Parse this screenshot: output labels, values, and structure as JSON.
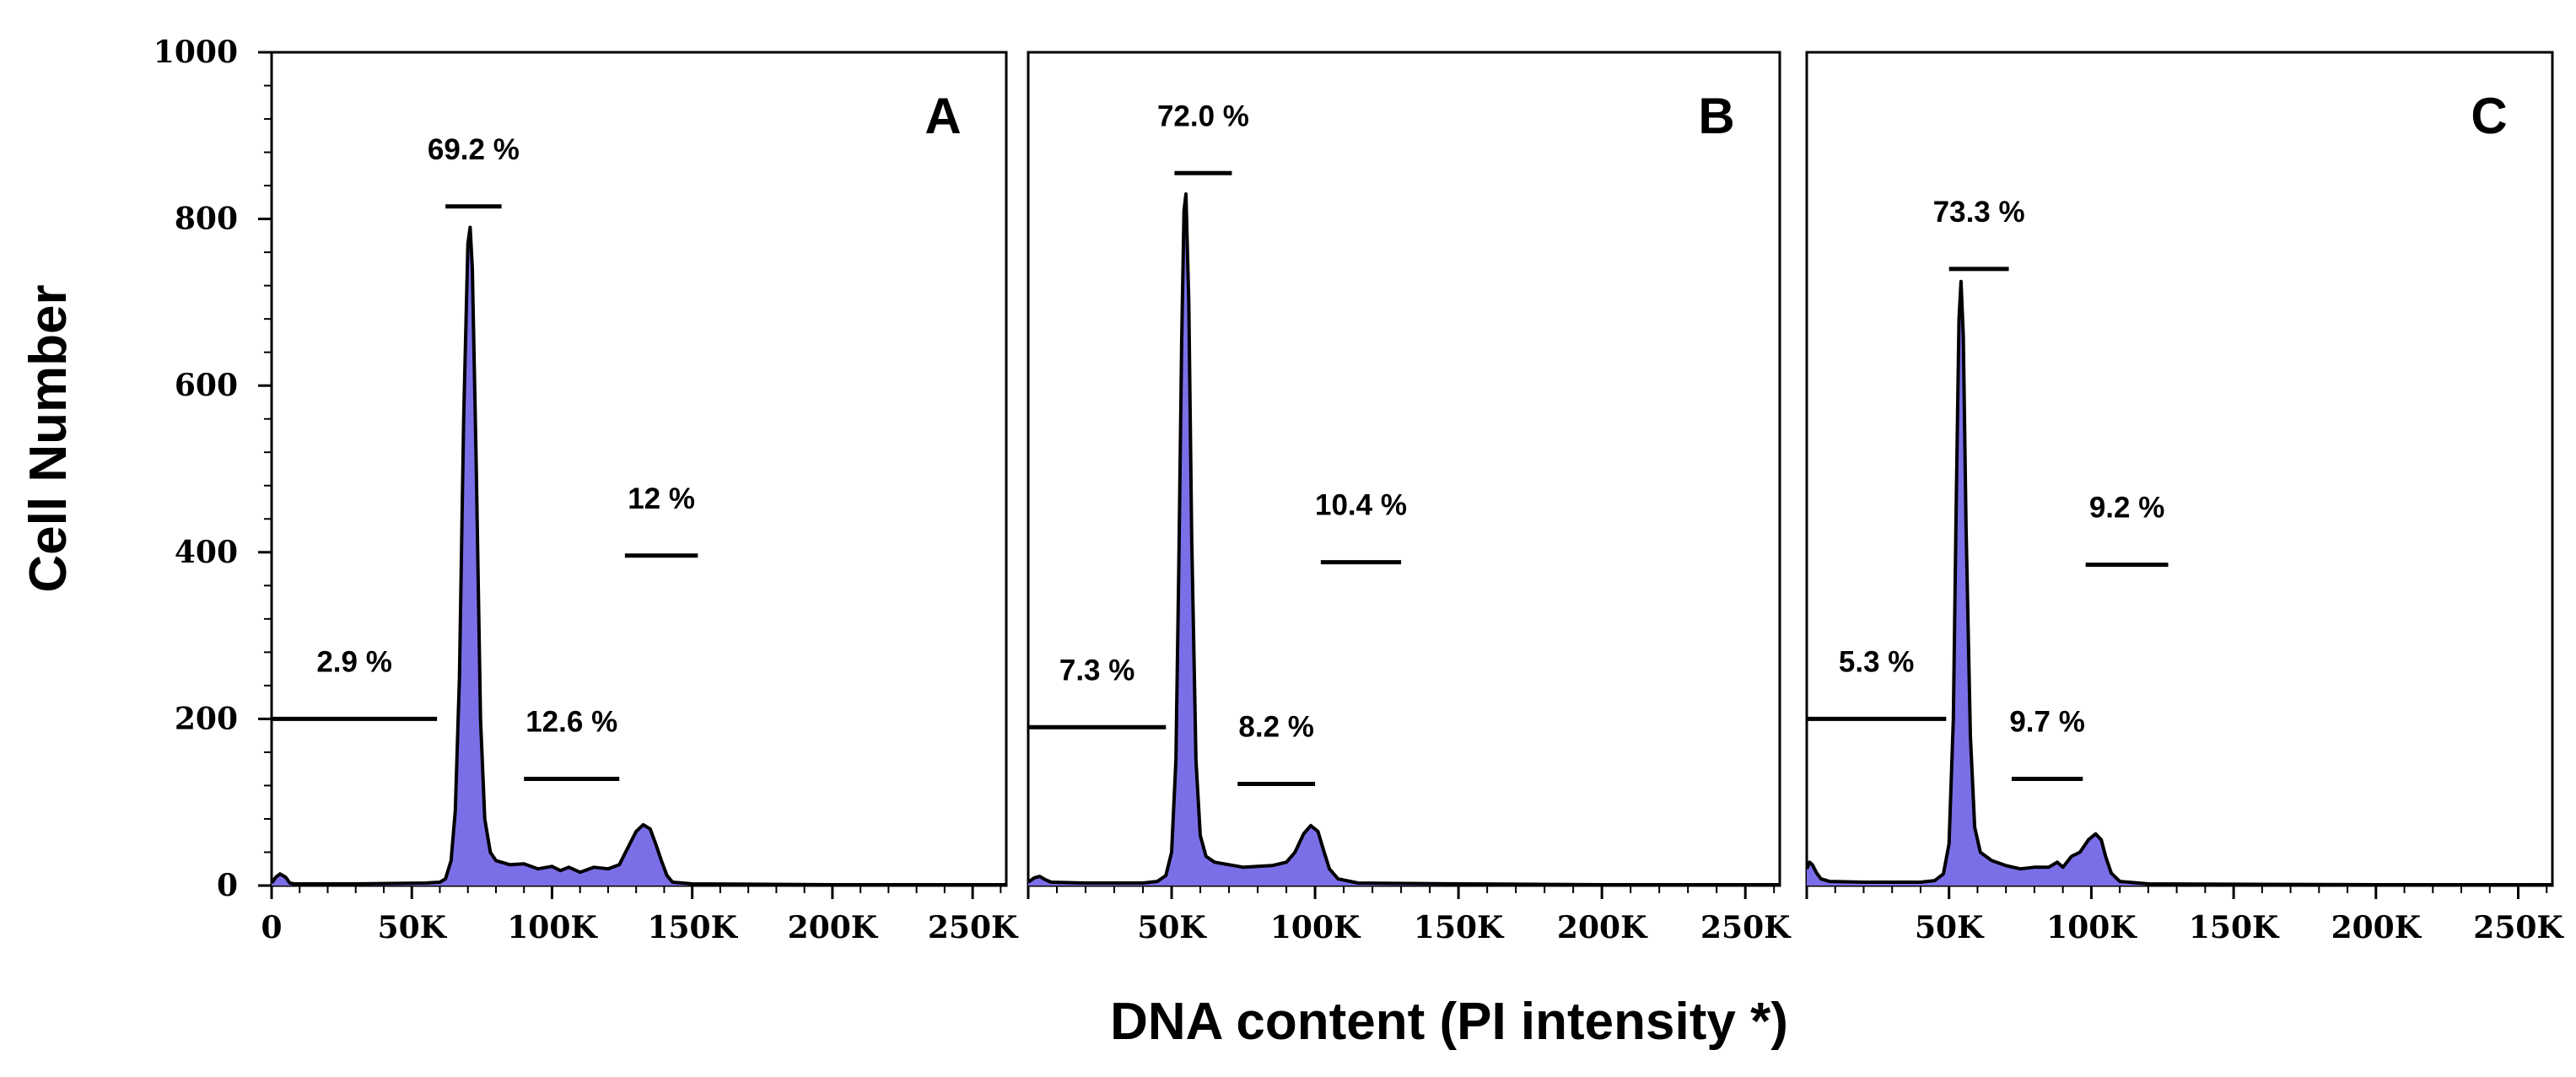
{
  "chart_data": {
    "type": "area",
    "title": "",
    "xlabel": "DNA content (PI intensity *)",
    "ylabel": "Cell Number",
    "ylim": [
      0,
      1000
    ],
    "xlim": [
      0,
      262000
    ],
    "y_ticks": [
      {
        "value": 0,
        "label": "0"
      },
      {
        "value": 200,
        "label": "200"
      },
      {
        "value": 400,
        "label": "400"
      },
      {
        "value": 600,
        "label": "600"
      },
      {
        "value": 800,
        "label": "800"
      },
      {
        "value": 1000,
        "label": "1000"
      }
    ],
    "fill_color": "#7b6fe8",
    "line_color": "#000000",
    "panels": [
      {
        "label": "A",
        "x_ticks": [
          {
            "value": 0,
            "label": "0"
          },
          {
            "value": 50000,
            "label": "50K"
          },
          {
            "value": 100000,
            "label": "100K"
          },
          {
            "value": 150000,
            "label": "150K"
          },
          {
            "value": 200000,
            "label": "200K"
          },
          {
            "value": 250000,
            "label": "250K"
          }
        ],
        "histogram": [
          [
            0,
            3
          ],
          [
            1500,
            10
          ],
          [
            3000,
            14
          ],
          [
            5000,
            10
          ],
          [
            6500,
            3
          ],
          [
            8000,
            2
          ],
          [
            30000,
            2
          ],
          [
            55000,
            3
          ],
          [
            60000,
            4
          ],
          [
            62000,
            8
          ],
          [
            64000,
            30
          ],
          [
            65500,
            90
          ],
          [
            67000,
            250
          ],
          [
            68500,
            560
          ],
          [
            70000,
            770
          ],
          [
            70800,
            790
          ],
          [
            71600,
            740
          ],
          [
            73000,
            500
          ],
          [
            74500,
            200
          ],
          [
            76000,
            80
          ],
          [
            78000,
            40
          ],
          [
            80000,
            30
          ],
          [
            85000,
            25
          ],
          [
            90000,
            26
          ],
          [
            95000,
            20
          ],
          [
            100000,
            23
          ],
          [
            103000,
            18
          ],
          [
            106000,
            22
          ],
          [
            110000,
            16
          ],
          [
            115000,
            22
          ],
          [
            120000,
            20
          ],
          [
            124000,
            25
          ],
          [
            127000,
            45
          ],
          [
            130000,
            65
          ],
          [
            132500,
            73
          ],
          [
            135000,
            68
          ],
          [
            137000,
            50
          ],
          [
            139000,
            30
          ],
          [
            141000,
            12
          ],
          [
            143000,
            4
          ],
          [
            150000,
            2
          ],
          [
            200000,
            1
          ],
          [
            262000,
            1
          ]
        ],
        "gates": [
          {
            "label": "2.9 %",
            "x_start": 0,
            "x_end": 59000,
            "y": 200
          },
          {
            "label": "69.2 %",
            "x_start": 62000,
            "x_end": 82000,
            "y": 815
          },
          {
            "label": "12.6 %",
            "x_start": 90000,
            "x_end": 124000,
            "y": 128
          },
          {
            "label": "12 %",
            "x_start": 126000,
            "x_end": 152000,
            "y": 396
          }
        ]
      },
      {
        "label": "B",
        "x_ticks": [
          {
            "value": 50000,
            "label": "50K"
          },
          {
            "value": 100000,
            "label": "100K"
          },
          {
            "value": 150000,
            "label": "150K"
          },
          {
            "value": 200000,
            "label": "200K"
          },
          {
            "value": 250000,
            "label": "250K"
          }
        ],
        "histogram": [
          [
            0,
            4
          ],
          [
            2000,
            9
          ],
          [
            4000,
            11
          ],
          [
            6000,
            7
          ],
          [
            8000,
            4
          ],
          [
            20000,
            3
          ],
          [
            40000,
            3
          ],
          [
            45000,
            5
          ],
          [
            48000,
            12
          ],
          [
            50000,
            40
          ],
          [
            51500,
            150
          ],
          [
            52500,
            380
          ],
          [
            53500,
            650
          ],
          [
            54300,
            810
          ],
          [
            55000,
            830
          ],
          [
            56000,
            700
          ],
          [
            57000,
            420
          ],
          [
            58500,
            150
          ],
          [
            60000,
            60
          ],
          [
            62000,
            35
          ],
          [
            65000,
            28
          ],
          [
            70000,
            25
          ],
          [
            75000,
            22
          ],
          [
            80000,
            23
          ],
          [
            85000,
            24
          ],
          [
            90000,
            28
          ],
          [
            93000,
            40
          ],
          [
            96000,
            62
          ],
          [
            98500,
            72
          ],
          [
            101000,
            65
          ],
          [
            103000,
            42
          ],
          [
            105000,
            20
          ],
          [
            108000,
            8
          ],
          [
            115000,
            3
          ],
          [
            150000,
            2
          ],
          [
            200000,
            1
          ],
          [
            262000,
            1
          ]
        ],
        "gates": [
          {
            "label": "7.3 %",
            "x_start": 0,
            "x_end": 48000,
            "y": 190
          },
          {
            "label": "72.0 %",
            "x_start": 51000,
            "x_end": 71000,
            "y": 855
          },
          {
            "label": "8.2 %",
            "x_start": 73000,
            "x_end": 100000,
            "y": 122
          },
          {
            "label": "10.4 %",
            "x_start": 102000,
            "x_end": 130000,
            "y": 388
          }
        ]
      },
      {
        "label": "C",
        "x_ticks": [
          {
            "value": 50000,
            "label": "50K"
          },
          {
            "value": 100000,
            "label": "100K"
          },
          {
            "value": 150000,
            "label": "150K"
          },
          {
            "value": 200000,
            "label": "200K"
          },
          {
            "value": 250000,
            "label": "250K"
          }
        ],
        "histogram": [
          [
            0,
            20
          ],
          [
            1000,
            28
          ],
          [
            2000,
            25
          ],
          [
            3500,
            15
          ],
          [
            5000,
            8
          ],
          [
            8000,
            5
          ],
          [
            20000,
            4
          ],
          [
            40000,
            4
          ],
          [
            45000,
            6
          ],
          [
            48000,
            14
          ],
          [
            50000,
            50
          ],
          [
            51500,
            200
          ],
          [
            52500,
            450
          ],
          [
            53500,
            680
          ],
          [
            54200,
            725
          ],
          [
            55000,
            660
          ],
          [
            56000,
            430
          ],
          [
            57500,
            180
          ],
          [
            59000,
            70
          ],
          [
            61000,
            40
          ],
          [
            65000,
            30
          ],
          [
            70000,
            24
          ],
          [
            75000,
            20
          ],
          [
            80000,
            22
          ],
          [
            85000,
            22
          ],
          [
            88000,
            28
          ],
          [
            90000,
            22
          ],
          [
            93000,
            35
          ],
          [
            96000,
            40
          ],
          [
            99000,
            55
          ],
          [
            101500,
            62
          ],
          [
            103500,
            55
          ],
          [
            105000,
            35
          ],
          [
            107000,
            15
          ],
          [
            110000,
            5
          ],
          [
            120000,
            2
          ],
          [
            200000,
            1
          ],
          [
            262000,
            1
          ]
        ],
        "gates": [
          {
            "label": "5.3 %",
            "x_start": 0,
            "x_end": 49000,
            "y": 200
          },
          {
            "label": "73.3 %",
            "x_start": 50000,
            "x_end": 71000,
            "y": 740
          },
          {
            "label": "9.7 %",
            "x_start": 72000,
            "x_end": 97000,
            "y": 128
          },
          {
            "label": "9.2 %",
            "x_start": 98000,
            "x_end": 127000,
            "y": 385
          }
        ]
      }
    ]
  }
}
